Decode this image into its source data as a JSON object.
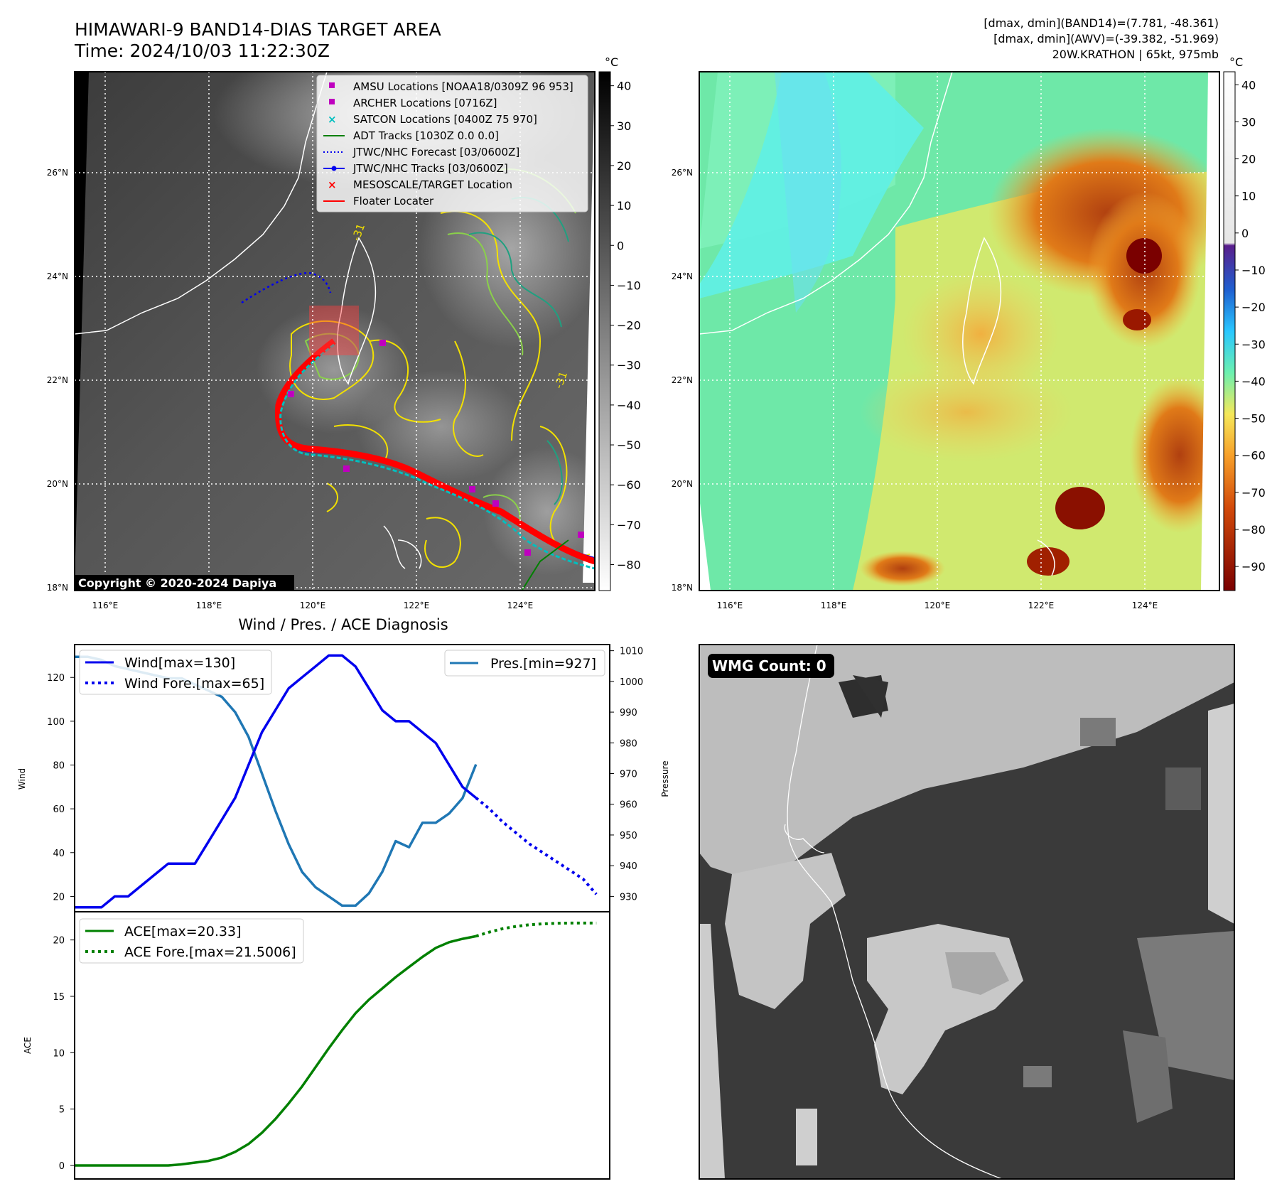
{
  "header": {
    "title": "HIMAWARI-9 BAND14-DIAS TARGET AREA",
    "time": "Time: 2024/10/03 11:22:30Z",
    "stat_band14": "[dmax, dmin](BAND14)=(7.781, -48.361)",
    "stat_awv": "[dmax, dmin](AWV)=(-39.382, -51.969)",
    "storm": "20W.KRATHON | 65kt, 975mb"
  },
  "map_common": {
    "lat_ticks": [
      "26°N",
      "24°N",
      "22°N",
      "20°N",
      "18°N"
    ],
    "lon_ticks": [
      "116°E",
      "118°E",
      "120°E",
      "122°E",
      "124°E"
    ],
    "unit": "°C"
  },
  "map_ir": {
    "colorbar_ticks": [
      "40",
      "30",
      "20",
      "10",
      "0",
      "−10",
      "−20",
      "−30",
      "−40",
      "−50",
      "−60",
      "−70",
      "−80"
    ],
    "copyright": "Copyright © 2020-2024 Dapiya",
    "contour_label": "-31",
    "legend": [
      {
        "label": "AMSU Locations [NOAA18/0309Z 96 953]",
        "marker": "square",
        "color": "#bf00bf"
      },
      {
        "label": "ARCHER Locations [0716Z]",
        "marker": "square",
        "color": "#bf00bf"
      },
      {
        "label": "SATCON Locations [0400Z 75 970]",
        "marker": "x",
        "color": "#00bfbf"
      },
      {
        "label": "ADT Tracks [1030Z 0.0 0.0]",
        "marker": "line",
        "color": "#008000"
      },
      {
        "label": "JTWC/NHC Forecast [03/0600Z]",
        "marker": "dotted",
        "color": "#0000ff"
      },
      {
        "label": "JTWC/NHC Tracks [03/0600Z]",
        "marker": "line-dot",
        "color": "#0000ff"
      },
      {
        "label": "MESOSCALE/TARGET Location",
        "marker": "x",
        "color": "#ff0000"
      },
      {
        "label": "Floater Locater",
        "marker": "line",
        "color": "#ff0000"
      }
    ]
  },
  "map_awv": {
    "colorbar_ticks": [
      "40",
      "30",
      "20",
      "10",
      "0",
      "−10",
      "−20",
      "−30",
      "−40",
      "−50",
      "−60",
      "−70",
      "−80",
      "−90"
    ]
  },
  "wmg": {
    "badge": "WMG Count: 0"
  },
  "chart_data": [
    {
      "type": "line",
      "title": "Wind / Pres. / ACE Diagnosis",
      "ylabel": "Wind",
      "y2label": "Pressure",
      "ylim": [
        13,
        135
      ],
      "y2lim": [
        925,
        1012
      ],
      "x": [
        0,
        1,
        2,
        3,
        4,
        5,
        6,
        7,
        8,
        9,
        10,
        11,
        12,
        13,
        14,
        15,
        16,
        17,
        18,
        19,
        20,
        21,
        22,
        23,
        24,
        25,
        26,
        27,
        28,
        29,
        30,
        31,
        32,
        33,
        34,
        35,
        36,
        37,
        38,
        39
      ],
      "yticks": [
        "120",
        "100",
        "80",
        "60",
        "40",
        "20"
      ],
      "y2ticks": [
        "1010",
        "1000",
        "990",
        "980",
        "970",
        "960",
        "950",
        "940",
        "930"
      ],
      "series": [
        {
          "name": "Wind[max=130]",
          "axis": "left",
          "style": "solid",
          "color": "#0000ee",
          "x": [
            0,
            1,
            2,
            3,
            4,
            5,
            6,
            7,
            8,
            9,
            10,
            11,
            12,
            13,
            14,
            15,
            16,
            17,
            18,
            19,
            20,
            21,
            22,
            23,
            24,
            25,
            26,
            27,
            28,
            29,
            30
          ],
          "values": [
            15,
            15,
            15,
            20,
            20,
            25,
            30,
            35,
            35,
            35,
            45,
            55,
            65,
            80,
            95,
            105,
            115,
            120,
            125,
            130,
            130,
            125,
            115,
            105,
            100,
            100,
            95,
            90,
            80,
            70,
            65
          ]
        },
        {
          "name": "Wind Fore.[max=65]",
          "axis": "left",
          "style": "dotted",
          "color": "#0000ee",
          "x": [
            30,
            31,
            32,
            33,
            34,
            35,
            36,
            37,
            38,
            39
          ],
          "values": [
            65,
            60,
            54,
            49,
            44,
            40,
            36,
            32,
            28,
            21
          ]
        },
        {
          "name": "Pres.[min=927]",
          "axis": "right",
          "style": "solid",
          "color": "#1f77b4",
          "x": [
            0,
            1,
            2,
            3,
            4,
            5,
            6,
            7,
            8,
            9,
            10,
            11,
            12,
            13,
            14,
            15,
            16,
            17,
            18,
            19,
            20,
            21,
            22,
            23,
            24,
            25,
            26,
            27,
            28,
            29,
            30
          ],
          "values": [
            1008,
            1008,
            1007,
            1005,
            1004,
            1003,
            1002,
            1001,
            1001,
            999,
            997,
            995,
            990,
            982,
            970,
            958,
            947,
            938,
            933,
            930,
            927,
            927,
            931,
            938,
            948,
            946,
            954,
            954,
            957,
            962,
            973
          ]
        }
      ]
    },
    {
      "type": "line",
      "ylabel": "ACE",
      "ylim": [
        -1.2,
        22.5
      ],
      "yticks": [
        "20",
        "15",
        "10",
        "5",
        "0"
      ],
      "series": [
        {
          "name": "ACE[max=20.33]",
          "style": "solid",
          "color": "#008000",
          "x": [
            0,
            1,
            2,
            3,
            4,
            5,
            6,
            7,
            8,
            9,
            10,
            11,
            12,
            13,
            14,
            15,
            16,
            17,
            18,
            19,
            20,
            21,
            22,
            23,
            24,
            25,
            26,
            27,
            28,
            29,
            30
          ],
          "values": [
            0,
            0,
            0,
            0,
            0,
            0,
            0,
            0,
            0.1,
            0.25,
            0.4,
            0.7,
            1.2,
            1.9,
            2.9,
            4.1,
            5.5,
            7.0,
            8.7,
            10.4,
            12.0,
            13.5,
            14.7,
            15.7,
            16.7,
            17.6,
            18.5,
            19.3,
            19.8,
            20.1,
            20.33
          ]
        },
        {
          "name": "ACE Fore.[max=21.5006]",
          "style": "dotted",
          "color": "#008000",
          "x": [
            30,
            31,
            32,
            33,
            34,
            35,
            36,
            37,
            38,
            39
          ],
          "values": [
            20.33,
            20.7,
            21.0,
            21.2,
            21.35,
            21.43,
            21.48,
            21.5,
            21.5,
            21.5006
          ]
        }
      ]
    }
  ]
}
